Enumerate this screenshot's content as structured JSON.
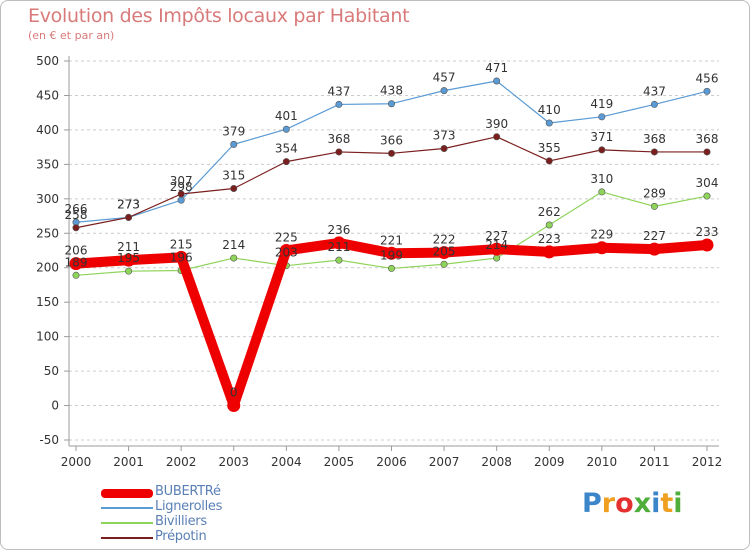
{
  "title": "Evolution des Impôts locaux par Habitant",
  "subtitle": "(en € et par an)",
  "colors": {
    "background": "#ffffff",
    "grid": "#cccccc",
    "axis": "#9b9b9b",
    "title": "#d97a7a",
    "legend_text": "#5a7fb5"
  },
  "chart_data": {
    "type": "line",
    "title": "Evolution des Impôts locaux par Habitant",
    "subtitle": "(en € et par an)",
    "xlabel": "",
    "ylabel": "",
    "x": [
      "2000",
      "2001",
      "2002",
      "2003",
      "2004",
      "2005",
      "2006",
      "2007",
      "2008",
      "2009",
      "2010",
      "2011",
      "2012"
    ],
    "ylim": [
      -50,
      500
    ],
    "yticks": [
      "-50",
      "0",
      "50",
      "100",
      "150",
      "200",
      "250",
      "300",
      "350",
      "400",
      "450",
      "500"
    ],
    "grid": "horizontal",
    "legend_position": "bottom-left",
    "series": [
      {
        "name": "Lignerolles",
        "color": "#5b9bd5",
        "values": [
          266,
          273,
          298,
          379,
          401,
          437,
          438,
          457,
          471,
          410,
          419,
          437,
          456
        ],
        "labels": [
          "266",
          "273",
          "298",
          "379",
          "401",
          "437",
          "438",
          "457",
          "471",
          "410",
          "419",
          "437",
          "456"
        ]
      },
      {
        "name": "Prépotin",
        "color": "#7b1e1e",
        "values": [
          258,
          273,
          307,
          315,
          354,
          368,
          366,
          373,
          390,
          355,
          371,
          368,
          368
        ],
        "labels": [
          "258",
          "273",
          "307",
          "315",
          "354",
          "368",
          "366",
          "373",
          "390",
          "355",
          "371",
          "368",
          "368"
        ]
      },
      {
        "name": "Bivilliers",
        "color": "#8fd45a",
        "values": [
          189,
          195,
          196,
          214,
          203,
          211,
          199,
          205,
          214,
          262,
          310,
          289,
          304
        ],
        "labels": [
          "189",
          "195",
          "196",
          "214",
          "203",
          "211",
          "199",
          "205",
          "214",
          "262",
          "310",
          "289",
          "304"
        ]
      },
      {
        "name": "BUBERTRé",
        "color": "#ee0000",
        "values": [
          206,
          211,
          215,
          0,
          225,
          236,
          221,
          222,
          227,
          223,
          229,
          227,
          233
        ],
        "labels": [
          "206",
          "211",
          "215",
          "0",
          "225",
          "236",
          "221",
          "222",
          "227",
          "223",
          "229",
          "227",
          "233"
        ]
      }
    ]
  },
  "legend": [
    {
      "label": "BUBERTRé",
      "color": "#ee0000",
      "thickness": "thick"
    },
    {
      "label": "Lignerolles",
      "color": "#5b9bd5",
      "thickness": "thin"
    },
    {
      "label": "Bivilliers",
      "color": "#8fd45a",
      "thickness": "thin"
    },
    {
      "label": "Prépotin",
      "color": "#7b1e1e",
      "thickness": "thin"
    }
  ],
  "logo": {
    "letters": [
      "P",
      "r",
      "o",
      "x",
      "i",
      "t",
      "i"
    ],
    "colors": [
      "#3a86c8",
      "#f0a020",
      "#e53030",
      "#4fae3a",
      "#3a86c8",
      "#f0a020",
      "#4fae3a"
    ]
  }
}
